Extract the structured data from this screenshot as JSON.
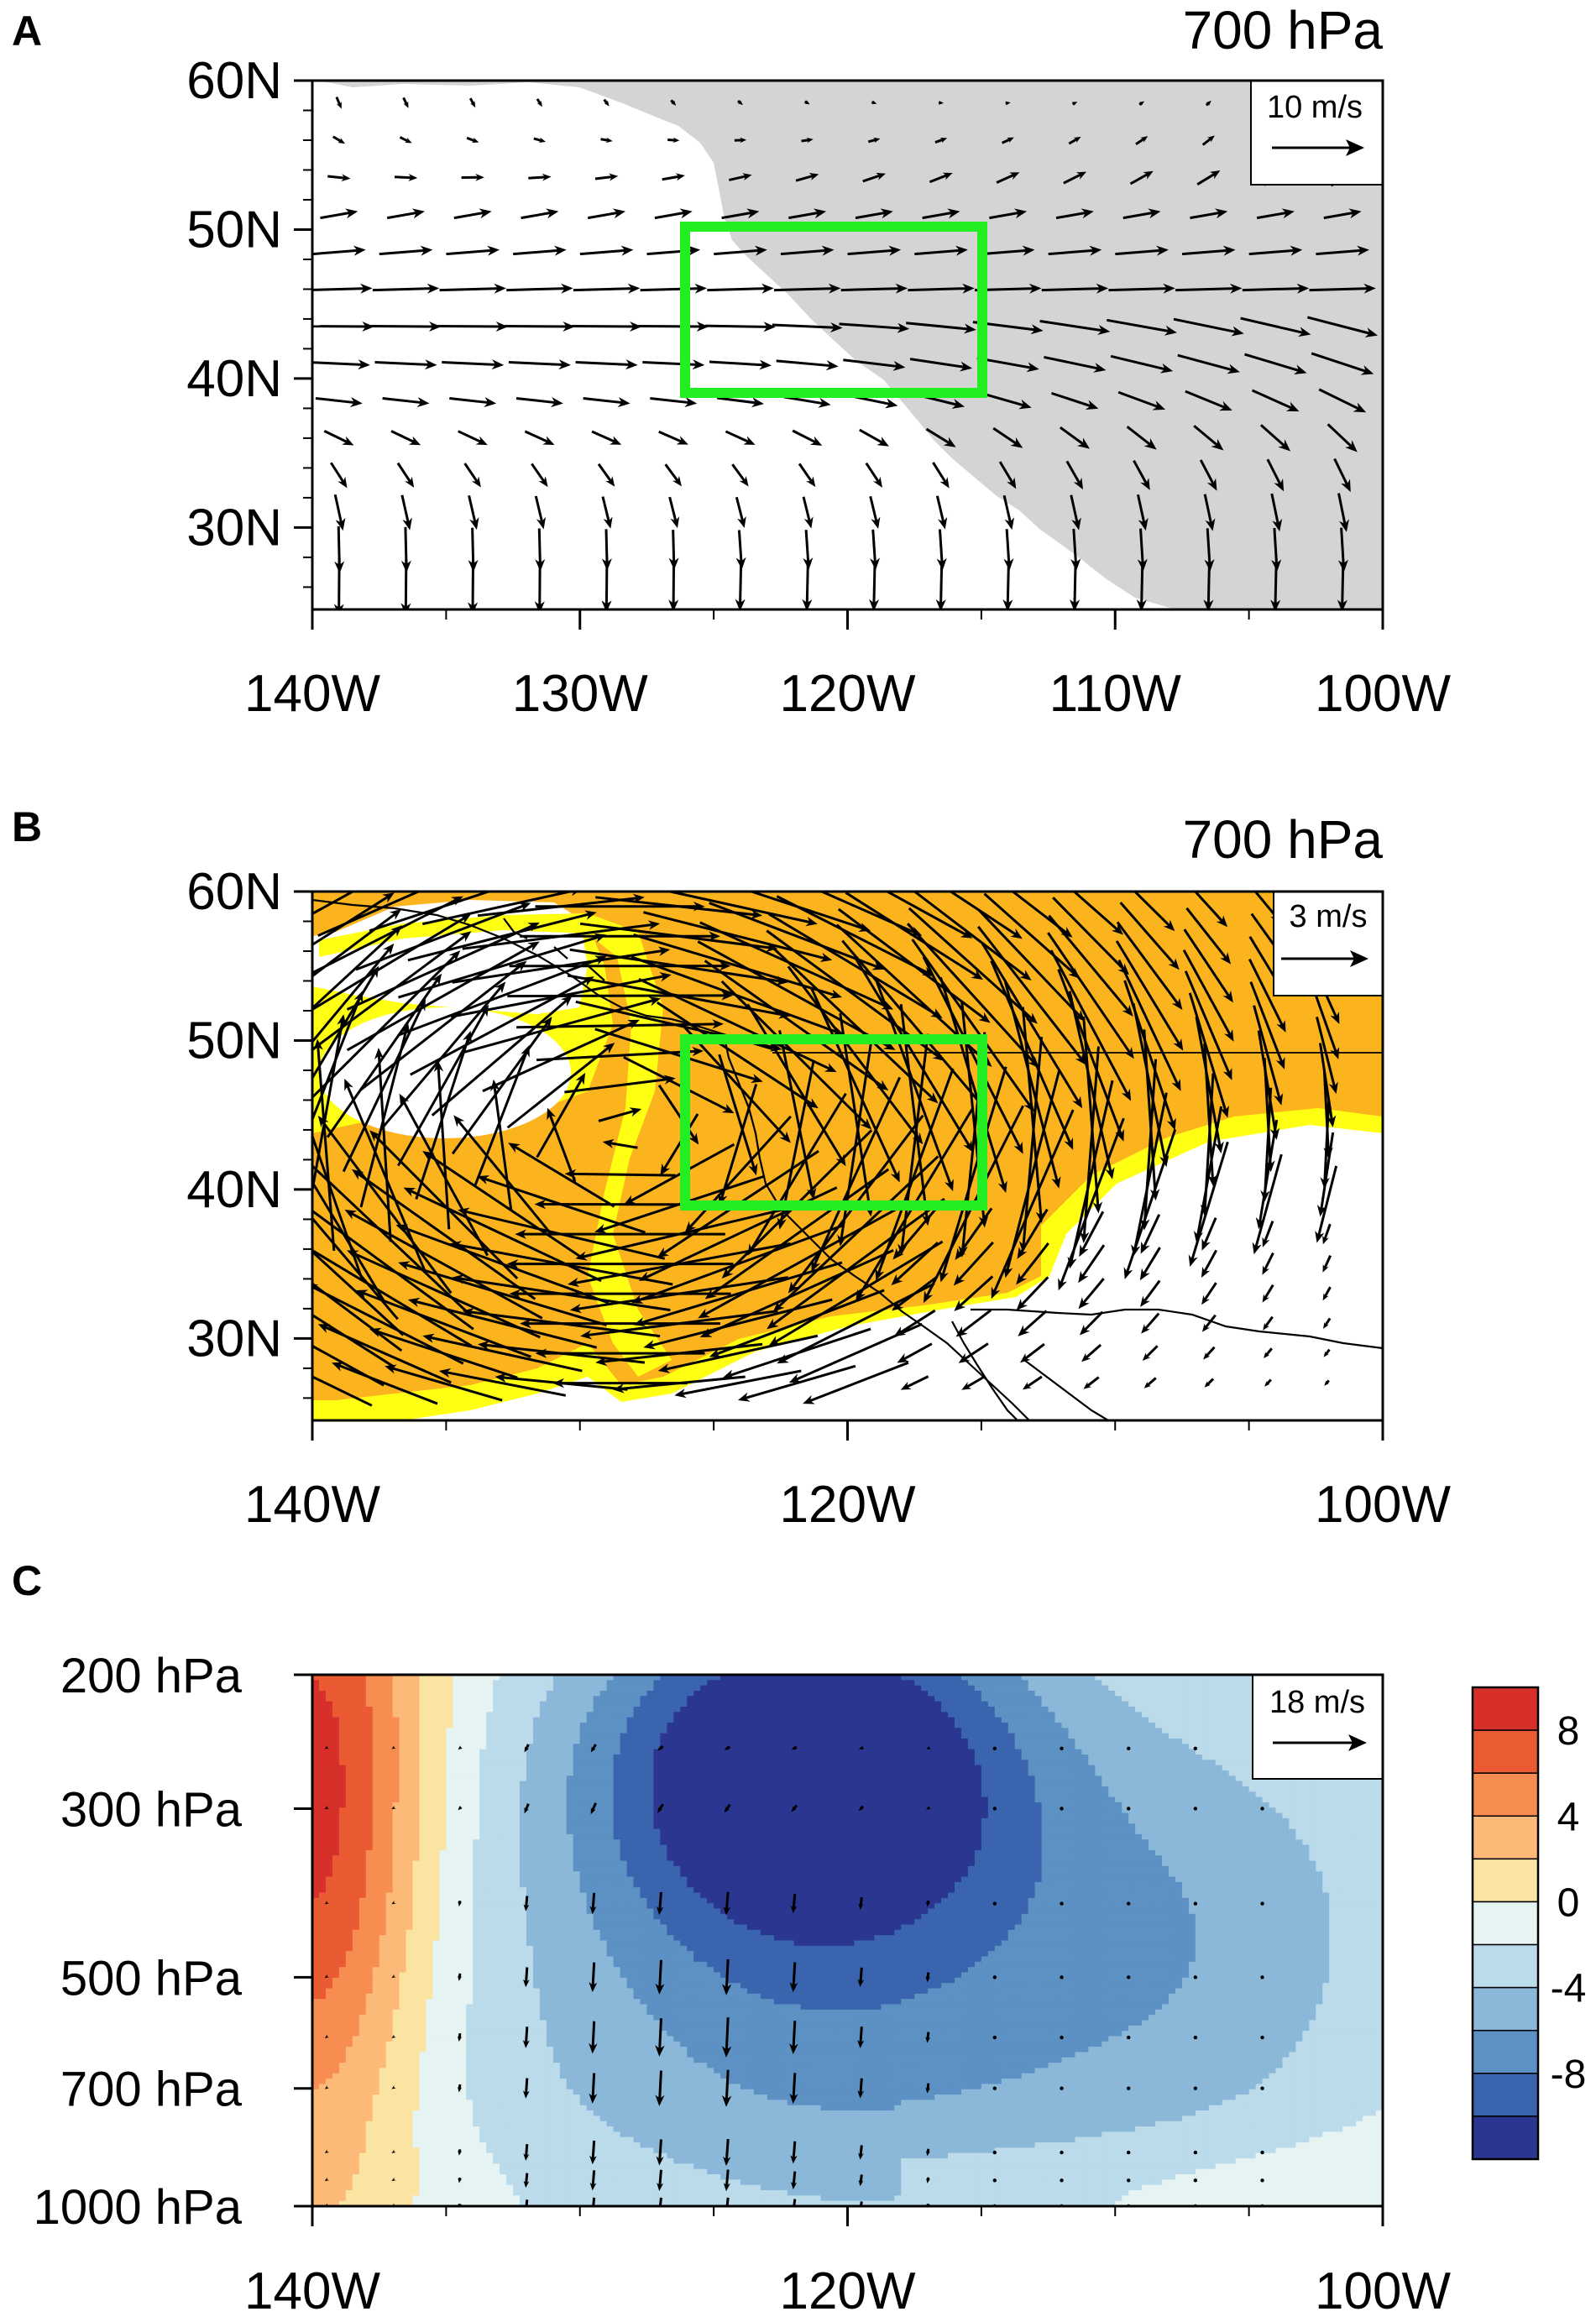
{
  "colors": {
    "vector_box": "#22ee22",
    "land_gray": "#d4d4d4",
    "shade_orange": "#fbb41e",
    "shade_yellow": "#ffff14",
    "coast_line": "#000000"
  },
  "chart_data": [
    {
      "panel": "A",
      "type": "vector",
      "title": "700 hPa",
      "x_ticks": [
        "140W",
        "130W",
        "120W",
        "110W",
        "100W"
      ],
      "y_ticks": [
        "60N",
        "50N",
        "40N",
        "30N"
      ],
      "xlim": [
        -140,
        -100
      ],
      "ylim": [
        24.5,
        60
      ],
      "reference_vector": "10 m/s",
      "reference_speed": 10,
      "land_shading": "gray",
      "highlight_box": {
        "lon": [
          -126,
          -115
        ],
        "lat": [
          39,
          50
        ],
        "color": "#22ee22"
      },
      "flow": "westerly onshore flow, strongest near 40-48N, turning southeastward over land"
    },
    {
      "panel": "B",
      "type": "vector",
      "title": "700 hPa",
      "x_ticks": [
        "140W",
        "120W",
        "100W"
      ],
      "y_ticks": [
        "60N",
        "50N",
        "40N",
        "30N"
      ],
      "xlim": [
        -140,
        -100
      ],
      "ylim": [
        24.5,
        60
      ],
      "reference_vector": "3 m/s",
      "reference_speed": 3,
      "shading": [
        "orange",
        "yellow"
      ],
      "highlight_box": {
        "lon": [
          -126,
          -115
        ],
        "lat": [
          39,
          50
        ],
        "color": "#22ee22"
      },
      "circulation": [
        {
          "kind": "anticyclonic anomaly",
          "center": [
            -128.5,
            44
          ],
          "strength": 3.6
        },
        {
          "kind": "cyclonic eddy",
          "center": [
            -135,
            46.5
          ],
          "strength": 1.6
        }
      ]
    },
    {
      "panel": "C",
      "type": "heatmap",
      "x_ticks": [
        "140W",
        "120W",
        "100W"
      ],
      "y_ticks": [
        "200 hPa",
        "300 hPa",
        "500 hPa",
        "700 hPa",
        "1000 hPa"
      ],
      "xlim": [
        -140,
        -100
      ],
      "ylim": [
        1000,
        200
      ],
      "reference_vector": "18 m/s",
      "reference_speed": 18,
      "colorbar_ticks": [
        "8",
        "4",
        "0",
        "-4",
        "-8"
      ],
      "colorbar_levels": [
        -12,
        -10,
        -8,
        -6,
        -4,
        -2,
        0,
        2,
        4,
        6,
        8,
        10
      ],
      "colorbar_colors": [
        "#2b3690",
        "#3a64ad",
        "#5d91c4",
        "#8bb8d9",
        "#bbdbeb",
        "#e5f3f3",
        "#fbe4a2",
        "#fcb978",
        "#f78d50",
        "#ea5a33",
        "#d7302b"
      ],
      "field": "anomaly cross-section: positive values near 140W, strong negative core near 122W at 250 hPa, descending motion between 132W and 118W"
    }
  ]
}
